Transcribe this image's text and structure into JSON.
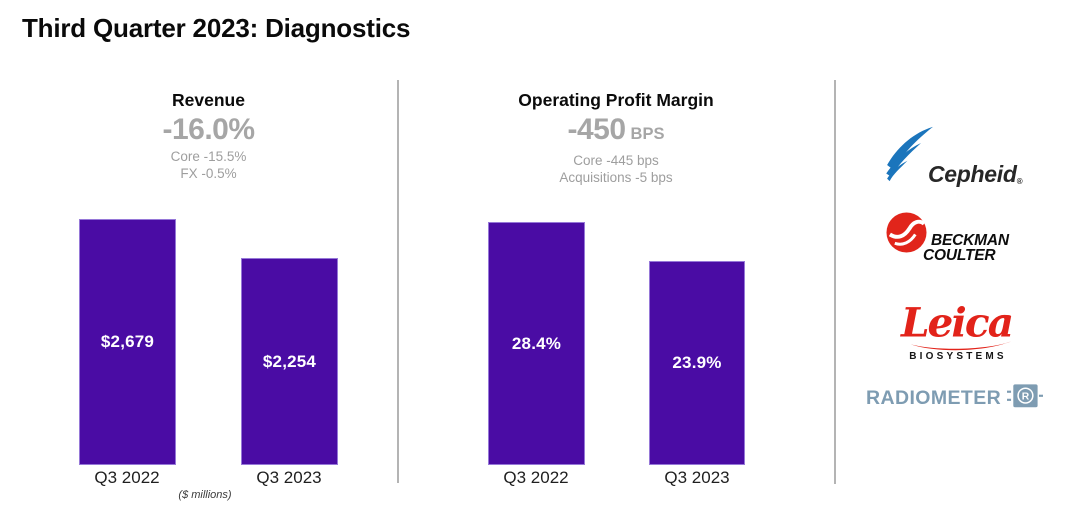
{
  "slide": {
    "title": "Third Quarter 2023: Diagnostics"
  },
  "chart_data": [
    {
      "type": "bar",
      "title": "Revenue",
      "delta": "-16.0%",
      "delta_unit": "",
      "breakdown": [
        "Core -15.5%",
        "FX -0.5%"
      ],
      "categories": [
        "Q3 2022",
        "Q3 2023"
      ],
      "values": [
        2679,
        2254
      ],
      "value_labels": [
        "$2,679",
        "$2,254"
      ],
      "unit_note": "($ millions)",
      "xlabel": "",
      "ylabel": "",
      "ylim": [
        0,
        2679
      ],
      "grid": false,
      "legend": false,
      "bar_color": "#4A0CA4",
      "value_label_color": "#FFFFFF"
    },
    {
      "type": "bar",
      "title": "Operating Profit Margin",
      "delta": "-450",
      "delta_unit": "BPS",
      "breakdown": [
        "Core -445 bps",
        "Acquisitions -5 bps"
      ],
      "categories": [
        "Q3 2022",
        "Q3 2023"
      ],
      "values": [
        28.4,
        23.9
      ],
      "value_labels": [
        "28.4%",
        "23.9%"
      ],
      "xlabel": "",
      "ylabel": "",
      "ylim": [
        0,
        28.4
      ],
      "grid": false,
      "legend": false,
      "bar_color": "#4A0CA4",
      "value_label_color": "#FFFFFF"
    }
  ],
  "logos": {
    "cepheid": {
      "text": "Cepheid",
      "reg": "®",
      "swoosh_color": "#1B75BC",
      "text_color": "#272727"
    },
    "beckman": {
      "line1": "BECKMAN",
      "line2": "COULTER",
      "mark_color": "#E1251B"
    },
    "leica": {
      "script": "Leica",
      "subtext": "BIOSYSTEMS",
      "mark_color": "#E2231A"
    },
    "radiometer": {
      "text": "RADIOMETER",
      "icon_letter": "R",
      "color": "#7E9CB2"
    }
  },
  "colors": {
    "bar_purple": "#4A0CA4",
    "bar_edge": "#9678D8",
    "divider_gray": "#B4B4B4",
    "delta_gray": "#A6A6A6",
    "sub_gray": "#9E9E9E"
  }
}
